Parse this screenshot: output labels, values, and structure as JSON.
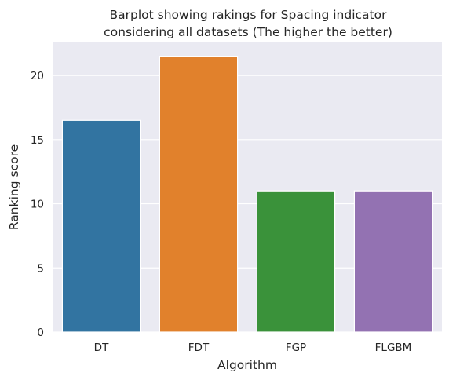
{
  "chart_data": {
    "type": "bar",
    "title_lines": [
      "Barplot showing rakings for Spacing indicator",
      "considering all datasets (The higher the better)"
    ],
    "xlabel": "Algorithm",
    "ylabel": "Ranking score",
    "categories": [
      "DT",
      "FDT",
      "FGP",
      "FLGBM"
    ],
    "values": [
      16.5,
      21.5,
      11,
      11
    ],
    "colors": [
      "#3274a1",
      "#e1812c",
      "#3a923a",
      "#9372b2"
    ],
    "ylim": [
      0,
      22.575
    ],
    "yticks": [
      0,
      5,
      10,
      15,
      20
    ],
    "grid": true,
    "background": "#eaeaf2",
    "grid_color": "#ffffff",
    "legend": "none"
  }
}
